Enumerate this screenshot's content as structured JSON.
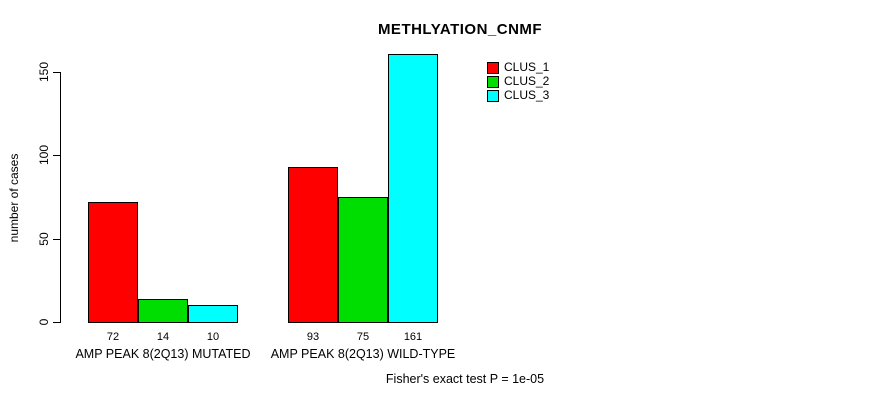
{
  "title": "METHLYATION_CNMF",
  "footer": "Fisher's exact test P = 1e-05",
  "chart_data": {
    "type": "bar",
    "title": "METHLYATION_CNMF",
    "xlabel": "",
    "ylabel": "number of cases",
    "categories": [
      "AMP PEAK 8(2Q13) MUTATED",
      "AMP PEAK 8(2Q13) WILD-TYPE"
    ],
    "series": [
      {
        "name": "CLUS_1",
        "color": "#ff0000",
        "values": [
          72,
          93
        ]
      },
      {
        "name": "CLUS_2",
        "color": "#00dd00",
        "values": [
          14,
          75
        ]
      },
      {
        "name": "CLUS_3",
        "color": "#00ffff",
        "values": [
          10,
          161
        ]
      }
    ],
    "yticks": [
      0,
      50,
      100,
      150
    ],
    "ylim": [
      0,
      165
    ],
    "grid": false,
    "legend_position": "upper-right",
    "annotation": "Fisher's exact test P = 1e-05"
  }
}
